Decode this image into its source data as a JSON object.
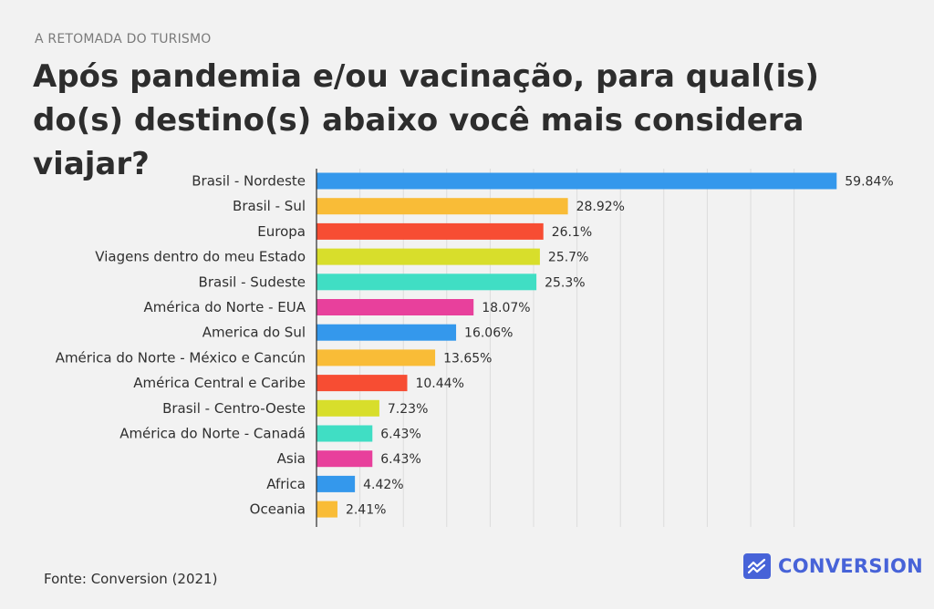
{
  "header": {
    "eyebrow": "A RETOMADA DO TURISMO",
    "title": "Após pandemia e/ou vacinação, para qual(is) do(s) destino(s) abaixo você mais considera viajar?"
  },
  "footer": {
    "source": "Fonte: Conversion (2021)",
    "brand": "CONVERSION",
    "brand_icon": "trend-line-icon",
    "brand_color": "#4763d8"
  },
  "chart_data": {
    "type": "bar",
    "orientation": "horizontal",
    "title": "",
    "xlabel": "",
    "ylabel": "",
    "xlim": [
      0,
      66
    ],
    "grid": true,
    "unit": "%",
    "categories": [
      "Brasil - Nordeste",
      "Brasil - Sul",
      "Europa",
      "Viagens dentro do meu Estado",
      "Brasil - Sudeste",
      "América do Norte - EUA",
      "America do Sul",
      "América do Norte - México e Cancún",
      "América Central e Caribe",
      "Brasil - Centro-Oeste",
      "América do Norte - Canadá",
      "Asia",
      "Africa",
      "Oceania"
    ],
    "values": [
      59.84,
      28.92,
      26.1,
      25.7,
      25.3,
      18.07,
      16.06,
      13.65,
      10.44,
      7.23,
      6.43,
      6.43,
      4.42,
      2.41
    ],
    "value_labels": [
      "59.84%",
      "28.92%",
      "26.1%",
      "25.7%",
      "25.3%",
      "18.07%",
      "16.06%",
      "13.65%",
      "10.44%",
      "7.23%",
      "6.43%",
      "6.43%",
      "4.42%",
      "2.41%"
    ],
    "colors": [
      "#3498ec",
      "#f9bc37",
      "#f74d33",
      "#d8de2b",
      "#40dec4",
      "#e8409c",
      "#3498ec",
      "#f9bc37",
      "#f74d33",
      "#d8de2b",
      "#40dec4",
      "#e8409c",
      "#3498ec",
      "#f9bc37"
    ]
  }
}
